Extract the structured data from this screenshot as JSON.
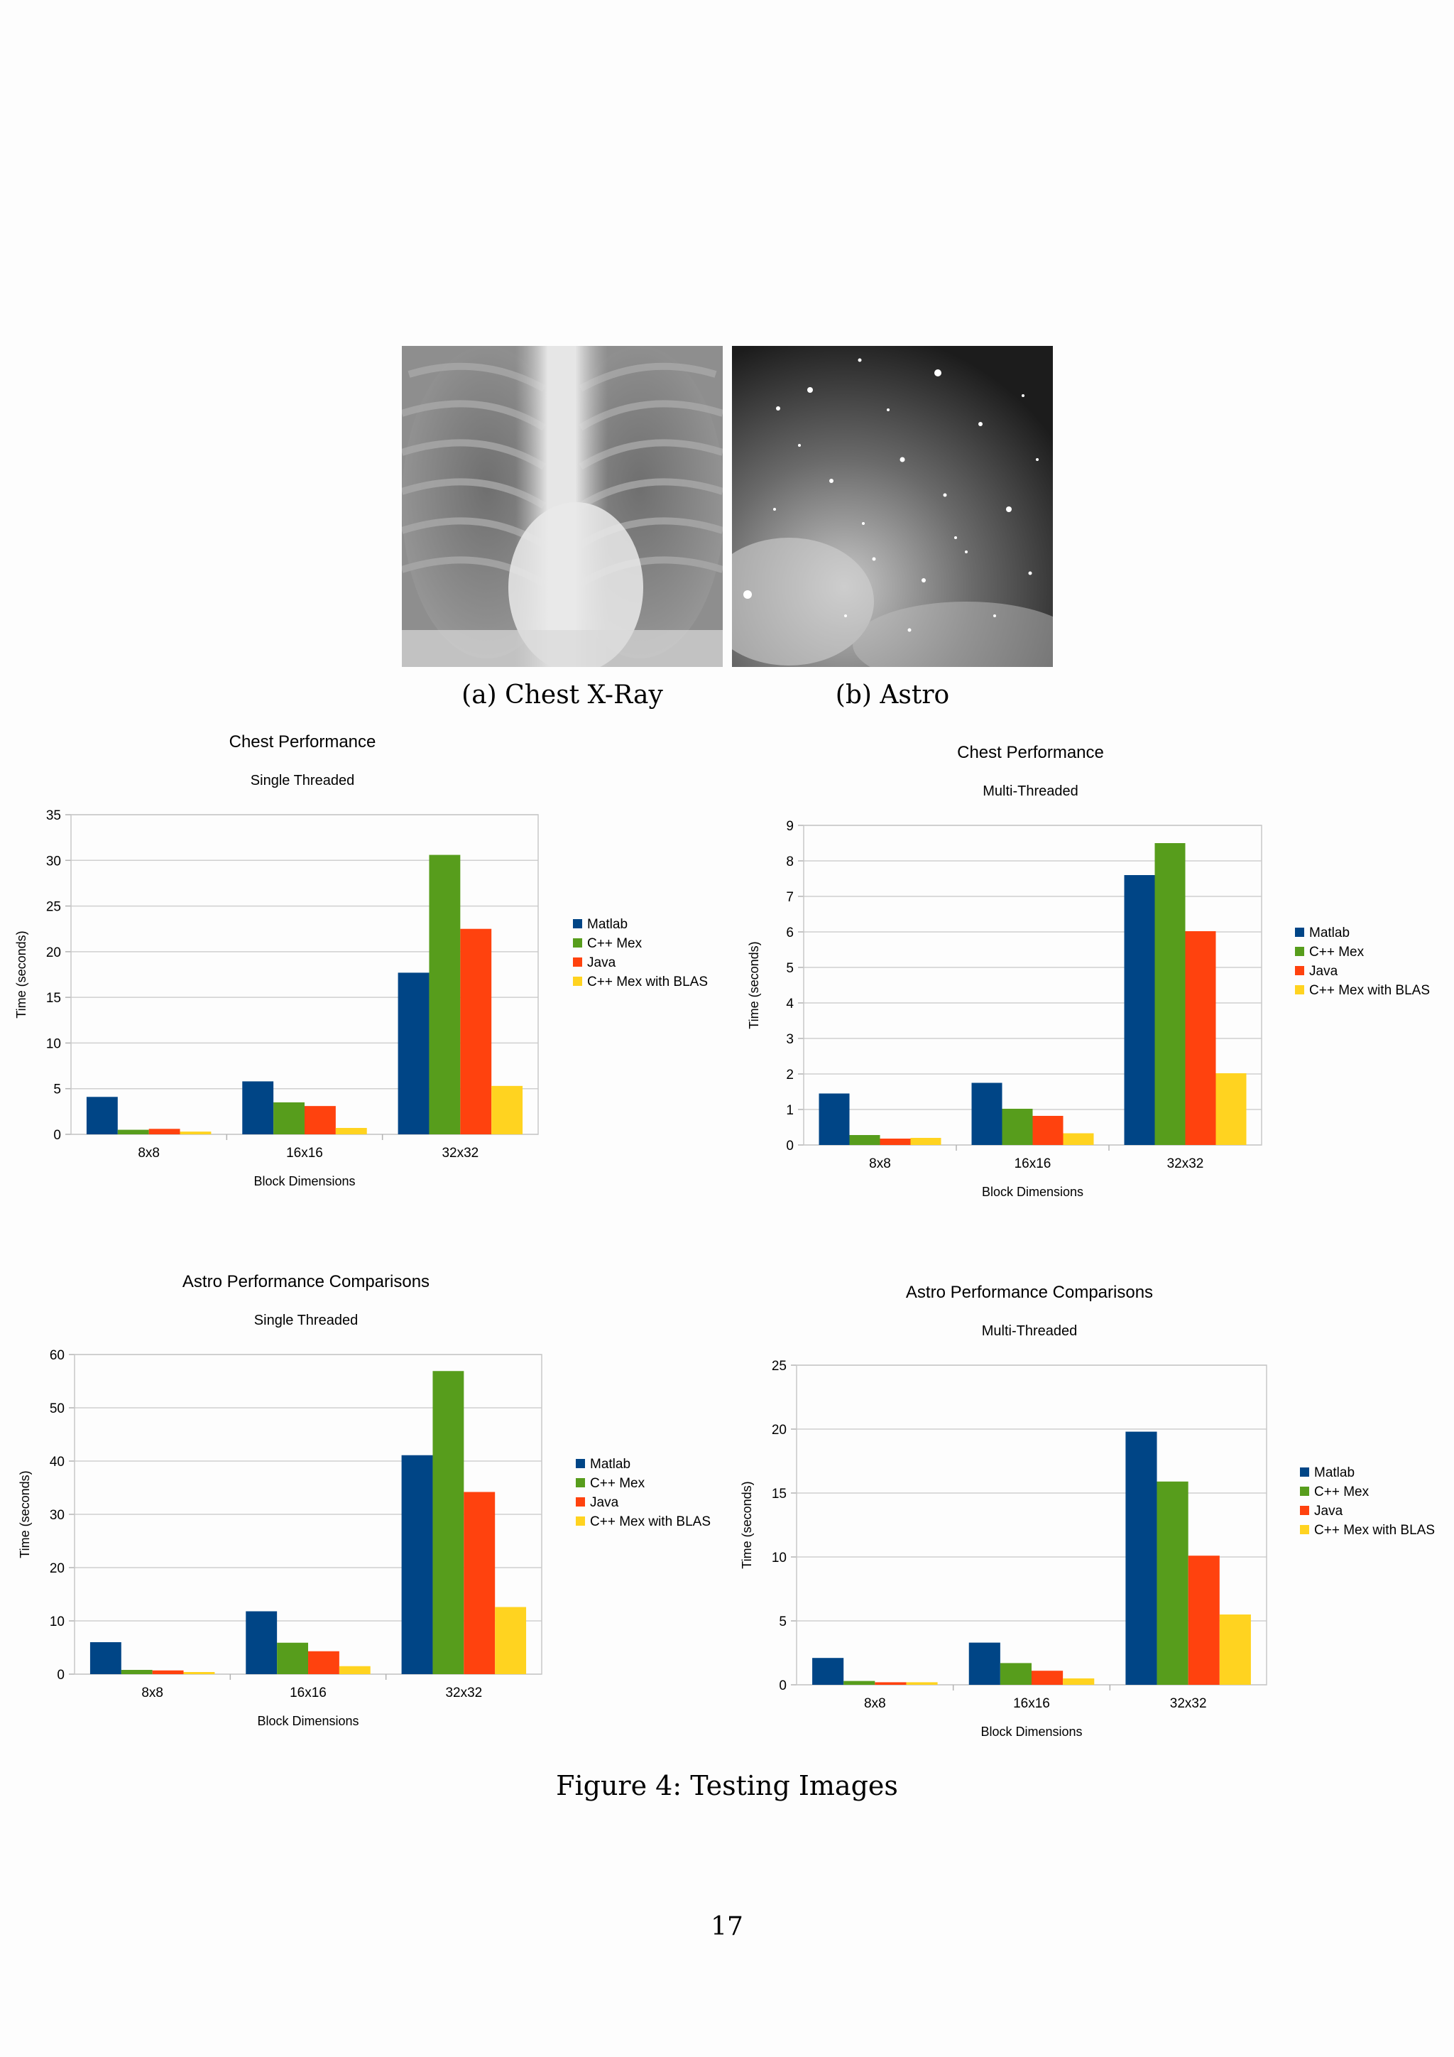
{
  "images": [
    {
      "caption": "(a) Chest X-Ray"
    },
    {
      "caption": "(b) Astro"
    }
  ],
  "colors": {
    "Matlab": "#004586",
    "C++ Mex": "#579d1c",
    "Java": "#ff420e",
    "C++ Mex with BLAS": "#ffd320"
  },
  "chart_data": [
    {
      "type": "bar",
      "title": "Chest Performance",
      "subtitle": "Single Threaded",
      "xlabel": "Block Dimensions",
      "ylabel": "Time (seconds)",
      "ylim": [
        0,
        35
      ],
      "yticks": [
        0,
        5,
        10,
        15,
        20,
        25,
        30,
        35
      ],
      "grid": true,
      "legend_position": "right",
      "categories": [
        "8x8",
        "16x16",
        "32x32"
      ],
      "series": [
        {
          "name": "Matlab",
          "values": [
            4.1,
            5.8,
            17.7
          ]
        },
        {
          "name": "C++ Mex",
          "values": [
            0.5,
            3.5,
            30.6
          ]
        },
        {
          "name": "Java",
          "values": [
            0.6,
            3.1,
            22.5
          ]
        },
        {
          "name": "C++ Mex with BLAS",
          "values": [
            0.3,
            0.7,
            5.3
          ]
        }
      ]
    },
    {
      "type": "bar",
      "title": "Chest Performance",
      "subtitle": "Multi-Threaded",
      "xlabel": "Block Dimensions",
      "ylabel": "Time (seconds)",
      "ylim": [
        0,
        9
      ],
      "yticks": [
        0,
        1,
        2,
        3,
        4,
        5,
        6,
        7,
        8,
        9
      ],
      "grid": true,
      "legend_position": "right",
      "categories": [
        "8x8",
        "16x16",
        "32x32"
      ],
      "series": [
        {
          "name": "Matlab",
          "values": [
            1.45,
            1.75,
            7.6
          ]
        },
        {
          "name": "C++ Mex",
          "values": [
            0.28,
            1.02,
            8.5
          ]
        },
        {
          "name": "Java",
          "values": [
            0.18,
            0.82,
            6.02
          ]
        },
        {
          "name": "C++ Mex with BLAS",
          "values": [
            0.2,
            0.33,
            2.02
          ]
        }
      ]
    },
    {
      "type": "bar",
      "title": "Astro Performance Comparisons",
      "subtitle": "Single Threaded",
      "xlabel": "Block Dimensions",
      "ylabel": "Time (seconds)",
      "ylim": [
        0,
        60
      ],
      "yticks": [
        0,
        10,
        20,
        30,
        40,
        50,
        60
      ],
      "grid": true,
      "legend_position": "right",
      "categories": [
        "8x8",
        "16x16",
        "32x32"
      ],
      "series": [
        {
          "name": "Matlab",
          "values": [
            6.0,
            11.8,
            41.1
          ]
        },
        {
          "name": "C++ Mex",
          "values": [
            0.8,
            5.9,
            56.9
          ]
        },
        {
          "name": "Java",
          "values": [
            0.7,
            4.3,
            34.2
          ]
        },
        {
          "name": "C++ Mex with BLAS",
          "values": [
            0.4,
            1.5,
            12.6
          ]
        }
      ]
    },
    {
      "type": "bar",
      "title": "Astro Performance Comparisons",
      "subtitle": "Multi-Threaded",
      "xlabel": "Block Dimensions",
      "ylabel": "Time (seconds)",
      "ylim": [
        0,
        25
      ],
      "yticks": [
        0,
        5,
        10,
        15,
        20,
        25
      ],
      "grid": true,
      "legend_position": "right",
      "categories": [
        "8x8",
        "16x16",
        "32x32"
      ],
      "series": [
        {
          "name": "Matlab",
          "values": [
            2.1,
            3.3,
            19.8
          ]
        },
        {
          "name": "C++ Mex",
          "values": [
            0.3,
            1.7,
            15.9
          ]
        },
        {
          "name": "Java",
          "values": [
            0.2,
            1.1,
            10.1
          ]
        },
        {
          "name": "C++ Mex with BLAS",
          "values": [
            0.2,
            0.5,
            5.5
          ]
        }
      ]
    }
  ],
  "figure_caption": "Figure 4: Testing Images",
  "page_number": "17"
}
